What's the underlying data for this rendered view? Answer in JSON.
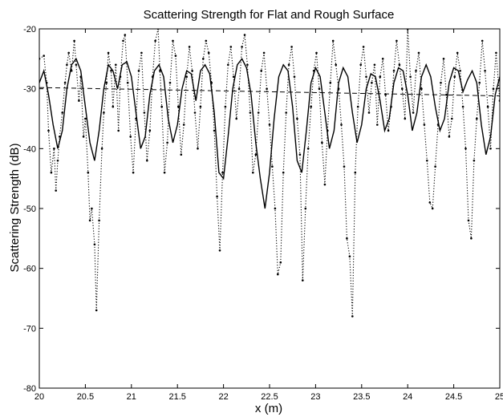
{
  "chart_data": {
    "type": "line",
    "title": "Scattering Strength for Flat and Rough Surface",
    "xlabel": "x (m)",
    "ylabel": "Scattering Strength (dB)",
    "xlim": [
      20,
      25
    ],
    "ylim": [
      -80,
      -20
    ],
    "xticks": [
      20,
      20.5,
      21,
      21.5,
      22,
      22.5,
      23,
      23.5,
      24,
      24.5,
      25
    ],
    "xtick_labels": [
      "20",
      "20.5",
      "21",
      "21.5",
      "22",
      "22.5",
      "23",
      "23.5",
      "24",
      "24.5",
      "25"
    ],
    "yticks": [
      -80,
      -70,
      -60,
      -50,
      -40,
      -30,
      -20
    ],
    "ytick_labels": [
      "-80",
      "-70",
      "-60",
      "-50",
      "-40",
      "-30",
      "-20"
    ],
    "grid": false,
    "legend": "none",
    "series": [
      {
        "style": "solid",
        "color": "#000000",
        "x": [
          20.0,
          20.05,
          20.1,
          20.15,
          20.2,
          20.25,
          20.3,
          20.35,
          20.4,
          20.45,
          20.5,
          20.55,
          20.6,
          20.65,
          20.7,
          20.75,
          20.8,
          20.85,
          20.9,
          20.95,
          21.0,
          21.05,
          21.1,
          21.15,
          21.2,
          21.25,
          21.3,
          21.35,
          21.4,
          21.45,
          21.5,
          21.55,
          21.6,
          21.65,
          21.7,
          21.75,
          21.8,
          21.85,
          21.9,
          21.95,
          22.0,
          22.05,
          22.1,
          22.15,
          22.2,
          22.25,
          22.3,
          22.35,
          22.4,
          22.45,
          22.5,
          22.55,
          22.6,
          22.65,
          22.7,
          22.75,
          22.8,
          22.85,
          22.9,
          22.95,
          23.0,
          23.05,
          23.1,
          23.15,
          23.2,
          23.25,
          23.3,
          23.35,
          23.4,
          23.45,
          23.5,
          23.55,
          23.6,
          23.65,
          23.7,
          23.75,
          23.8,
          23.85,
          23.9,
          23.95,
          24.0,
          24.05,
          24.1,
          24.15,
          24.2,
          24.25,
          24.3,
          24.35,
          24.4,
          24.45,
          24.5,
          24.55,
          24.6,
          24.65,
          24.7,
          24.75,
          24.8,
          24.85,
          24.9,
          24.95,
          25.0
        ],
        "y": [
          -29,
          -27,
          -31,
          -36,
          -40,
          -37,
          -30,
          -26,
          -25,
          -27,
          -33,
          -39,
          -42,
          -37,
          -30,
          -26,
          -27,
          -30,
          -26,
          -25.5,
          -28,
          -34,
          -40,
          -38,
          -31,
          -27,
          -26,
          -28,
          -35,
          -39,
          -36,
          -30,
          -27,
          -27.5,
          -32,
          -27,
          -26,
          -27.5,
          -34,
          -44,
          -45,
          -38,
          -30,
          -26,
          -25,
          -26.5,
          -31,
          -39,
          -45,
          -50,
          -44,
          -35,
          -28,
          -26,
          -27,
          -33,
          -42,
          -44,
          -37,
          -29,
          -26.5,
          -28,
          -34,
          -40,
          -37,
          -29,
          -26.5,
          -28,
          -34,
          -39,
          -36,
          -30,
          -27.5,
          -28,
          -32,
          -37,
          -35,
          -29,
          -26.5,
          -27,
          -31,
          -37,
          -34,
          -28,
          -26,
          -28,
          -33,
          -37,
          -35,
          -29,
          -26.5,
          -27,
          -30.5,
          -28.5,
          -27,
          -29,
          -36,
          -41,
          -38,
          -31,
          -28
        ]
      },
      {
        "style": "dashed",
        "color": "#000000",
        "x": [
          20,
          25
        ],
        "y": [
          -29.8,
          -31.2
        ]
      },
      {
        "style": "dotted",
        "color": "#000000",
        "x": [
          20.0,
          20.05,
          20.08,
          20.1,
          20.13,
          20.16,
          20.18,
          20.2,
          20.22,
          20.25,
          20.28,
          20.3,
          20.32,
          20.35,
          20.38,
          20.4,
          20.43,
          20.45,
          20.48,
          20.5,
          20.53,
          20.55,
          20.57,
          20.6,
          20.62,
          20.65,
          20.68,
          20.7,
          20.73,
          20.75,
          20.78,
          20.8,
          20.83,
          20.86,
          20.88,
          20.91,
          20.93,
          20.96,
          20.99,
          21.02,
          21.05,
          21.08,
          21.11,
          21.14,
          21.17,
          21.2,
          21.23,
          21.26,
          21.29,
          21.31,
          21.33,
          21.36,
          21.39,
          21.42,
          21.45,
          21.48,
          21.51,
          21.54,
          21.57,
          21.6,
          21.63,
          21.66,
          21.69,
          21.72,
          21.75,
          21.78,
          21.81,
          21.84,
          21.87,
          21.9,
          21.93,
          21.96,
          21.99,
          22.02,
          22.05,
          22.08,
          22.11,
          22.14,
          22.17,
          22.2,
          22.23,
          22.26,
          22.29,
          22.32,
          22.35,
          22.38,
          22.41,
          22.44,
          22.47,
          22.5,
          22.53,
          22.56,
          22.59,
          22.62,
          22.65,
          22.68,
          22.71,
          22.74,
          22.77,
          22.8,
          22.83,
          22.86,
          22.89,
          22.92,
          22.95,
          22.98,
          23.01,
          23.04,
          23.07,
          23.1,
          23.13,
          23.16,
          23.19,
          23.22,
          23.25,
          23.28,
          23.31,
          23.34,
          23.37,
          23.4,
          23.43,
          23.46,
          23.49,
          23.52,
          23.55,
          23.58,
          23.61,
          23.64,
          23.67,
          23.7,
          23.73,
          23.76,
          23.79,
          23.82,
          23.85,
          23.88,
          23.91,
          23.94,
          23.97,
          24.0,
          24.03,
          24.06,
          24.09,
          24.12,
          24.15,
          24.18,
          24.21,
          24.24,
          24.27,
          24.3,
          24.33,
          24.36,
          24.39,
          24.42,
          24.45,
          24.48,
          24.51,
          24.54,
          24.57,
          24.6,
          24.63,
          24.66,
          24.69,
          24.72,
          24.75,
          24.78,
          24.81,
          24.84,
          24.87,
          24.9,
          24.93,
          24.96,
          25.0
        ],
        "y": [
          -25,
          -24.5,
          -29,
          -37,
          -44,
          -40,
          -47,
          -42,
          -38,
          -34,
          -29,
          -26,
          -24,
          -27,
          -22,
          -26,
          -32,
          -28,
          -38,
          -35,
          -44,
          -52,
          -50,
          -56,
          -67,
          -52,
          -40,
          -34,
          -29,
          -24,
          -27,
          -33,
          -26,
          -37,
          -28,
          -22,
          -21,
          -29,
          -38,
          -44,
          -35,
          -27,
          -24,
          -34,
          -42,
          -37,
          -28,
          -22,
          -20,
          -27,
          -33,
          -44,
          -39,
          -29,
          -22,
          -24.5,
          -33,
          -41,
          -36,
          -28,
          -23,
          -27,
          -34,
          -40,
          -33,
          -25,
          -22,
          -24,
          -29,
          -37,
          -48,
          -57,
          -44,
          -33,
          -26,
          -23,
          -28,
          -35,
          -30,
          -23,
          -21,
          -26,
          -34,
          -44,
          -41,
          -34,
          -27,
          -24,
          -30,
          -36,
          -43,
          -50,
          -61,
          -59,
          -44,
          -34,
          -26,
          -23,
          -28,
          -35,
          -41,
          -62,
          -50,
          -40,
          -33,
          -27,
          -24,
          -30,
          -39,
          -46,
          -37,
          -29,
          -22,
          -26,
          -30,
          -36,
          -43,
          -55,
          -58,
          -68,
          -44,
          -33,
          -26,
          -23,
          -28,
          -34,
          -29,
          -26,
          -36,
          -28,
          -25,
          -31,
          -37,
          -33,
          -27,
          -22,
          -26,
          -30,
          -35,
          -20,
          -28,
          -34,
          -27,
          -24,
          -30,
          -36,
          -42,
          -49,
          -50,
          -43,
          -36,
          -29,
          -25,
          -31,
          -38,
          -35,
          -28,
          -24,
          -27,
          -33,
          -40,
          -52,
          -55,
          -42,
          -35,
          -29,
          -22,
          -27,
          -33,
          -40,
          -30,
          -24,
          -32
        ]
      }
    ]
  }
}
